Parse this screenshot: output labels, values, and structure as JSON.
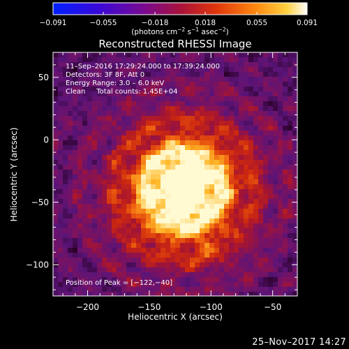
{
  "chart_data": {
    "type": "heatmap",
    "title": "Reconstructed RHESSI Image",
    "xlabel": "Heliocentric X (arcsec)",
    "ylabel": "Heliocentric Y (arcsec)",
    "xlim": [
      -228,
      -30
    ],
    "ylim": [
      -125,
      70
    ],
    "x_ticks": [
      -200,
      -150,
      -100,
      -50
    ],
    "x_tick_labels": [
      "−200",
      "−150",
      "−100",
      "−50"
    ],
    "y_ticks": [
      -100,
      -50,
      0,
      50
    ],
    "y_tick_labels": [
      "−100",
      "−50",
      "0",
      "50"
    ],
    "colorbar": {
      "range": [
        -0.091,
        0.091
      ],
      "ticks": [
        -0.091,
        -0.055,
        -0.018,
        0.018,
        0.055,
        0.091
      ],
      "tick_labels": [
        "−0.091",
        "−0.055",
        "−0.018",
        "0.018",
        "0.055",
        "0.091"
      ],
      "unit_label_parts": [
        "(photons cm",
        "−2",
        " s",
        "−1",
        " asec",
        "−2",
        ")"
      ]
    },
    "annotations": [
      "11–Sep–2016 17:29:24.000 to 17:39:24.000",
      "Detectors: 3F 8F, Att 0",
      "Energy Range: 3.0 – 6.0 keV",
      "Clean     Total counts: 1.45E+04"
    ],
    "peak_label": "Position of Peak = [−122,−40]",
    "peak": [
      -122,
      -40
    ],
    "grid": false
  },
  "footer": {
    "date": "25–Nov–2017 14:27"
  }
}
